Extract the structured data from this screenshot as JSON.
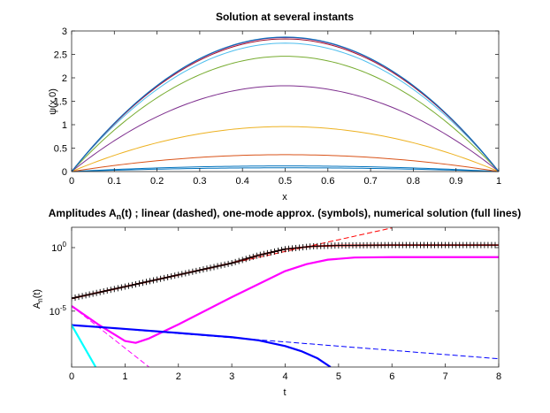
{
  "chart_data": [
    {
      "type": "line",
      "title": "Solution at several instants",
      "xlabel": "x",
      "ylabel": "ψ(x,0)",
      "xlim": [
        0,
        1
      ],
      "ylim": [
        0,
        3
      ],
      "xticks": [
        "0",
        "0.1",
        "0.2",
        "0.3",
        "0.4",
        "0.5",
        "0.6",
        "0.7",
        "0.8",
        "0.9",
        "1"
      ],
      "yticks": [
        "0",
        "0.5",
        "1",
        "1.5",
        "2",
        "2.5",
        "3"
      ],
      "grid": false,
      "series": [
        {
          "peak": 0.08,
          "color": "#0072bd"
        },
        {
          "peak": 0.12,
          "color": "#0072bd"
        },
        {
          "peak": 0.36,
          "color": "#d95319"
        },
        {
          "peak": 0.96,
          "color": "#edb120"
        },
        {
          "peak": 1.83,
          "color": "#7e2f8e"
        },
        {
          "peak": 2.46,
          "color": "#77ac30"
        },
        {
          "peak": 2.74,
          "color": "#4dbeee"
        },
        {
          "peak": 2.83,
          "color": "#a2142f"
        },
        {
          "peak": 2.86,
          "color": "#7e2f8e"
        },
        {
          "peak": 2.87,
          "color": "#0072bd"
        }
      ]
    },
    {
      "type": "line",
      "title": "Amplitudes A",
      "title_sub": "n",
      "title_rest": "(t) ; linear (dashed), one-mode approx. (symbols), numerical solution (full lines)",
      "xlabel": "t",
      "ylabel": "A",
      "ylabel_sub": "n",
      "ylabel_rest": "(t)",
      "xlim": [
        0,
        8
      ],
      "ylim_log10": [
        -9.4,
        1.6
      ],
      "yscale": "log",
      "xticks": [
        "0",
        "1",
        "2",
        "3",
        "4",
        "5",
        "6",
        "7",
        "8"
      ],
      "yticks": [
        {
          "base": "10",
          "exp": "0",
          "log10": 0
        },
        {
          "base": "10",
          "exp": "-5",
          "log10": -5
        }
      ],
      "grid": false,
      "series": [
        {
          "role": "numerical",
          "color": "#ff0000",
          "width": 1.8,
          "dash": false,
          "points": [
            [
              0,
              -4.0
            ],
            [
              3.0,
              -1.22
            ],
            [
              3.5,
              -0.6
            ],
            [
              4.0,
              -0.12
            ],
            [
              4.5,
              0.1
            ],
            [
              5.0,
              0.17
            ],
            [
              6.0,
              0.2
            ],
            [
              8.0,
              0.2
            ]
          ]
        },
        {
          "role": "linear",
          "color": "#ff0000",
          "width": 1.0,
          "dash": true,
          "points": [
            [
              0,
              -4.0
            ],
            [
              5.0,
              0.62
            ],
            [
              6.0,
              1.55
            ]
          ]
        },
        {
          "role": "one-mode",
          "color": "#000000",
          "symbol": "+",
          "x_start": 0,
          "x_end": 8,
          "count": 120
        },
        {
          "role": "numerical",
          "color": "#ff00ff",
          "width": 2.2,
          "dash": false,
          "points": [
            [
              0,
              -4.6
            ],
            [
              0.5,
              -6.05
            ],
            [
              1.0,
              -7.35
            ],
            [
              1.2,
              -7.5
            ],
            [
              1.45,
              -7.15
            ],
            [
              2.0,
              -6.05
            ],
            [
              3.0,
              -3.9
            ],
            [
              4.0,
              -1.85
            ],
            [
              4.4,
              -1.3
            ],
            [
              4.8,
              -0.95
            ],
            [
              5.3,
              -0.78
            ],
            [
              6.0,
              -0.75
            ],
            [
              8.0,
              -0.75
            ]
          ]
        },
        {
          "role": "linear",
          "color": "#ff00ff",
          "width": 1.0,
          "dash": true,
          "points": [
            [
              0,
              -4.6
            ],
            [
              1.45,
              -9.4
            ]
          ]
        },
        {
          "role": "numerical",
          "color": "#0000ff",
          "width": 2.2,
          "dash": false,
          "points": [
            [
              0,
              -6.1
            ],
            [
              1.0,
              -6.4
            ],
            [
              2.0,
              -6.72
            ],
            [
              3.0,
              -7.05
            ],
            [
              3.5,
              -7.3
            ],
            [
              4.0,
              -7.75
            ],
            [
              4.3,
              -8.15
            ],
            [
              4.6,
              -8.7
            ],
            [
              4.85,
              -9.4
            ]
          ]
        },
        {
          "role": "linear",
          "color": "#0000ff",
          "width": 1.0,
          "dash": true,
          "points": [
            [
              0,
              -6.1
            ],
            [
              8.0,
              -8.75
            ]
          ]
        },
        {
          "role": "numerical",
          "color": "#00ffff",
          "width": 2.2,
          "dash": false,
          "points": [
            [
              0,
              -6.1
            ],
            [
              0.45,
              -9.4
            ]
          ]
        }
      ]
    }
  ]
}
